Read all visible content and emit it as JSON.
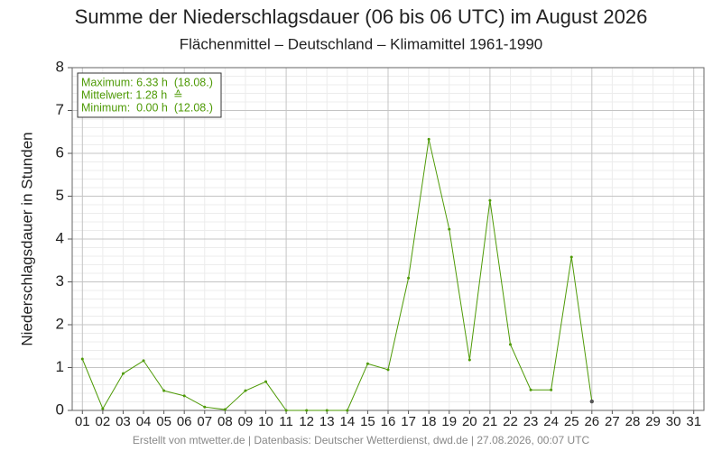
{
  "chart_data": {
    "type": "line",
    "title": "Summe der Niederschlagsdauer (06 bis 06 UTC) im August 2026",
    "subtitle": "Flächenmittel – Deutschland – Klimamittel 1961-1990",
    "y_label": "Niederschlagsdauer in Stunden",
    "annotations": [
      "Maximum: 6.33 h  (18.08.)",
      "Mittelwert: 1.28 h  ≙",
      "Minimum:  0.00 h  (12.08.)"
    ],
    "footer": "Erstellt von mtwetter.de | Datenbasis: Deutscher Wetterdienst, dwd.de | 27.08.2026, 00:07 UTC",
    "categories": [
      "01",
      "02",
      "03",
      "04",
      "05",
      "06",
      "07",
      "08",
      "09",
      "10",
      "11",
      "12",
      "13",
      "14",
      "15",
      "16",
      "17",
      "18",
      "19",
      "20",
      "21",
      "22",
      "23",
      "24",
      "25",
      "26",
      "27",
      "28",
      "29",
      "30",
      "31"
    ],
    "series": [
      {
        "name": "Niederschlagsdauer",
        "color": "#4e9a06",
        "values": [
          1.2,
          0.04,
          0.86,
          1.16,
          0.46,
          0.34,
          0.08,
          0.02,
          0.46,
          0.67,
          0.0,
          0.0,
          0.0,
          0.0,
          1.09,
          0.95,
          3.09,
          6.33,
          4.23,
          1.18,
          4.9,
          1.54,
          0.48,
          0.48,
          3.58,
          0.21,
          null,
          null,
          null,
          null,
          null
        ]
      }
    ],
    "ylim": [
      0,
      8
    ],
    "yticks": [
      0,
      1,
      2,
      3,
      4,
      5,
      6,
      7,
      8
    ],
    "grid": true
  }
}
